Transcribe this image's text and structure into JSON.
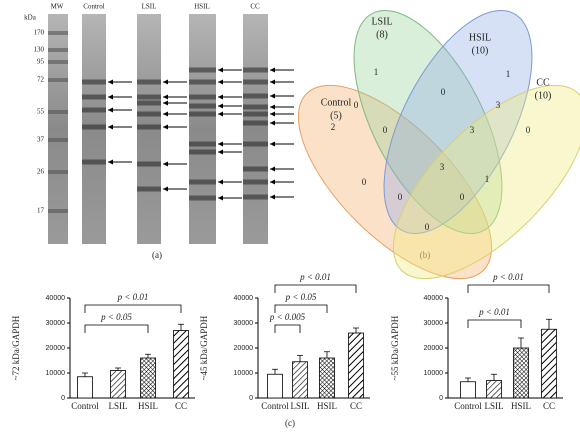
{
  "blot": {
    "unit": "kDa",
    "lanes": [
      "MW",
      "Control",
      "LSIL",
      "HSIL",
      "CC"
    ],
    "markers": [
      170,
      130,
      95,
      72,
      55,
      37,
      26,
      17
    ]
  },
  "venn": {
    "sets": [
      {
        "name": "Control",
        "count": "(5)"
      },
      {
        "name": "LSIL",
        "count": "(8)"
      },
      {
        "name": "HSIL",
        "count": "(10)"
      },
      {
        "name": "CC",
        "count": "(10)"
      }
    ],
    "regions": [
      1,
      1,
      0,
      0,
      3,
      2,
      0,
      3,
      0,
      3,
      0,
      1,
      0,
      0,
      0
    ]
  },
  "panel_labels": [
    "(a)",
    "(b)",
    "(c)"
  ],
  "chart_data": [
    {
      "type": "bar",
      "ylabel": "~72 kDa/GAPDH",
      "categories": [
        "Control",
        "LSIL",
        "HSIL",
        "CC"
      ],
      "values": [
        8500,
        11000,
        16000,
        27000
      ],
      "errors": [
        1500,
        1000,
        1500,
        2500
      ],
      "ylim": [
        0,
        40000
      ],
      "yticks": [
        0,
        10000,
        20000,
        30000,
        40000
      ],
      "annotations": [
        "p < 0.05",
        "p < 0.01"
      ]
    },
    {
      "type": "bar",
      "ylabel": "~45 kDa/GAPDH",
      "categories": [
        "Control",
        "LSIL",
        "HSIL",
        "CC"
      ],
      "values": [
        9500,
        14500,
        16000,
        26000
      ],
      "errors": [
        2000,
        2500,
        2500,
        2000
      ],
      "ylim": [
        0,
        40000
      ],
      "yticks": [
        0,
        10000,
        20000,
        30000,
        40000
      ],
      "annotations": [
        "p < 0.005",
        "p < 0.05",
        "p < 0.01"
      ]
    },
    {
      "type": "bar",
      "ylabel": "~55 kDa/GAPDH",
      "categories": [
        "Control",
        "LSIL",
        "HSIL",
        "CC"
      ],
      "values": [
        6500,
        7000,
        20000,
        27500
      ],
      "errors": [
        1500,
        2500,
        4000,
        4000
      ],
      "ylim": [
        0,
        40000
      ],
      "yticks": [
        0,
        10000,
        20000,
        30000,
        40000
      ],
      "annotations": [
        "p < 0.01",
        "p < 0.01"
      ]
    }
  ]
}
